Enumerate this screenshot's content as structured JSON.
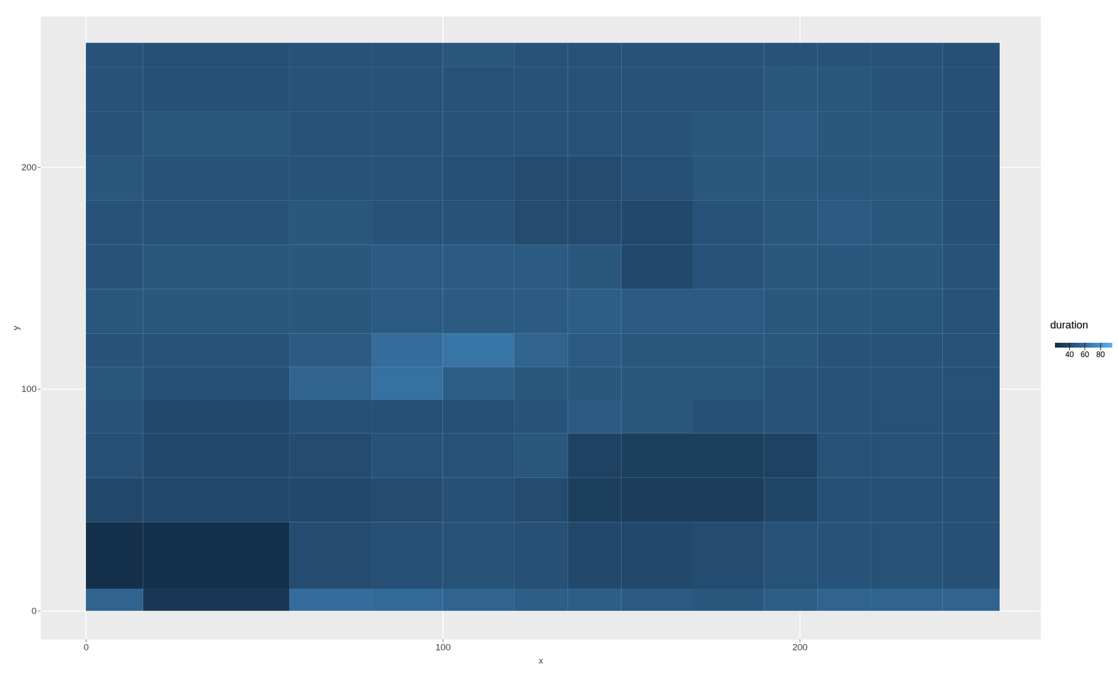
{
  "chart_data": {
    "type": "heatmap",
    "x_label": "x",
    "y_label": "y",
    "xlim": [
      -12.7,
      267.5
    ],
    "ylim": [
      -12.8,
      268
    ],
    "xticks": [
      0,
      100,
      200
    ],
    "yticks": [
      0,
      100,
      200
    ],
    "grid": true,
    "x_edges": [
      0,
      16,
      57,
      80,
      100,
      120,
      135,
      150,
      170,
      190,
      205,
      220,
      240,
      256
    ],
    "y_edges": [
      0,
      10,
      40,
      60,
      80,
      95,
      110,
      125,
      145,
      165,
      185,
      205,
      225,
      245,
      256
    ],
    "values": [
      [
        55,
        30,
        60,
        58,
        55,
        52,
        52,
        50,
        48,
        52,
        55,
        55,
        55
      ],
      [
        25,
        25,
        42,
        44,
        45,
        44,
        40,
        40,
        42,
        45,
        46,
        45,
        44
      ],
      [
        40,
        40,
        40,
        42,
        44,
        42,
        34,
        33,
        33,
        38,
        44,
        44,
        44
      ],
      [
        44,
        40,
        42,
        46,
        45,
        48,
        36,
        34,
        34,
        36,
        45,
        45,
        44
      ],
      [
        46,
        40,
        44,
        44,
        44,
        46,
        50,
        48,
        44,
        46,
        46,
        45,
        44
      ],
      [
        48,
        44,
        55,
        62,
        52,
        48,
        48,
        48,
        48,
        46,
        46,
        46,
        45
      ],
      [
        46,
        46,
        50,
        60,
        65,
        55,
        50,
        48,
        48,
        48,
        46,
        46,
        46
      ],
      [
        48,
        48,
        48,
        50,
        50,
        50,
        52,
        50,
        50,
        48,
        48,
        47,
        46
      ],
      [
        46,
        48,
        48,
        50,
        50,
        50,
        48,
        40,
        46,
        48,
        48,
        48,
        46
      ],
      [
        46,
        46,
        48,
        46,
        46,
        42,
        42,
        40,
        46,
        48,
        50,
        48,
        44
      ],
      [
        48,
        46,
        46,
        46,
        44,
        42,
        42,
        44,
        48,
        48,
        48,
        48,
        44
      ],
      [
        46,
        48,
        46,
        46,
        46,
        46,
        46,
        46,
        48,
        50,
        48,
        48,
        44
      ],
      [
        46,
        44,
        46,
        46,
        46,
        46,
        46,
        46,
        46,
        48,
        48,
        46,
        44
      ],
      [
        46,
        44,
        46,
        46,
        48,
        46,
        46,
        46,
        46,
        46,
        46,
        46,
        44
      ]
    ],
    "colorbar": {
      "label": "duration",
      "range": [
        22,
        95
      ],
      "ticks": [
        40,
        60,
        80
      ]
    }
  }
}
